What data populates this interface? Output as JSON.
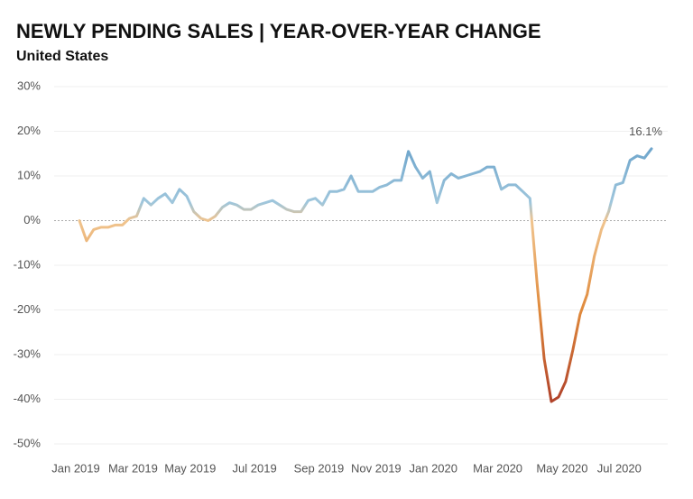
{
  "chart_data": {
    "type": "line",
    "title": "NEWLY PENDING SALES | YEAR-OVER-YEAR CHANGE",
    "subtitle": "United States",
    "categories": [
      "Jan 2019",
      null,
      null,
      null,
      null,
      null,
      null,
      null,
      "Mar 2019",
      null,
      null,
      null,
      null,
      null,
      null,
      null,
      "May 2019",
      null,
      null,
      null,
      null,
      null,
      null,
      null,
      null,
      "Jul 2019",
      null,
      null,
      null,
      null,
      null,
      null,
      null,
      null,
      "Sep 2019",
      null,
      null,
      null,
      null,
      null,
      null,
      null,
      "Nov 2019",
      null,
      null,
      null,
      null,
      null,
      null,
      null,
      "Jan 2020",
      null,
      null,
      null,
      null,
      null,
      null,
      null,
      null,
      "Mar 2020",
      null,
      null,
      null,
      null,
      null,
      null,
      null,
      null,
      "May 2020",
      null,
      null,
      null,
      null,
      null,
      null,
      null,
      "Jul 2020",
      null,
      null,
      null,
      null
    ],
    "values": [
      0,
      -4.5,
      -2,
      -1.5,
      -1.5,
      -1,
      -1,
      0.5,
      1,
      5,
      3.5,
      5,
      6,
      4,
      7,
      5.5,
      2,
      0.5,
      0,
      1,
      3,
      4,
      3.5,
      2.5,
      2.5,
      3.5,
      4,
      4.5,
      3.5,
      2.5,
      2,
      2,
      4.5,
      5,
      3.5,
      6.5,
      6.5,
      7,
      10,
      6.5,
      6.5,
      6.5,
      7.5,
      8,
      9,
      9,
      15.5,
      12,
      9.5,
      11,
      4,
      9,
      10.5,
      9.5,
      10,
      10.5,
      11,
      12,
      12,
      7,
      8,
      8,
      6.5,
      5,
      -14,
      -31,
      -40.5,
      -39.5,
      -36,
      -29,
      -21,
      -16.5,
      -8,
      -2,
      2,
      8,
      8.5,
      13.5,
      14.5,
      14,
      16.1
    ],
    "value_labels": [
      null,
      null,
      null,
      null,
      null,
      null,
      null,
      null,
      null,
      null,
      null,
      null,
      null,
      null,
      null,
      null,
      null,
      null,
      null,
      null,
      null,
      null,
      null,
      null,
      null,
      null,
      null,
      null,
      null,
      null,
      null,
      null,
      null,
      null,
      null,
      null,
      null,
      null,
      null,
      null,
      null,
      null,
      null,
      null,
      null,
      null,
      null,
      null,
      null,
      null,
      null,
      null,
      null,
      null,
      null,
      null,
      null,
      null,
      null,
      null,
      null,
      null,
      null,
      null,
      null,
      null,
      null,
      null,
      null,
      null,
      null,
      null,
      null,
      null,
      null,
      null,
      null,
      null,
      null,
      null,
      "16.1%"
    ],
    "ylim": [
      -50,
      30
    ],
    "yticks": [
      {
        "value": 30,
        "label": "30%"
      },
      {
        "value": 20,
        "label": "20%"
      },
      {
        "value": 10,
        "label": "10%"
      },
      {
        "value": 0,
        "label": "0%"
      },
      {
        "value": -10,
        "label": "-10%"
      },
      {
        "value": -20,
        "label": "-20%"
      },
      {
        "value": -30,
        "label": "-30%"
      },
      {
        "value": -40,
        "label": "-40%"
      },
      {
        "value": -50,
        "label": "-50%"
      }
    ],
    "grid": true,
    "colorscale": [
      [
        16,
        "#6fa6cc"
      ],
      [
        4,
        "#9fc6dc"
      ],
      [
        0,
        "#f0c48e"
      ],
      [
        -20,
        "#e08a3c"
      ],
      [
        -40,
        "#b1432a"
      ]
    ]
  }
}
